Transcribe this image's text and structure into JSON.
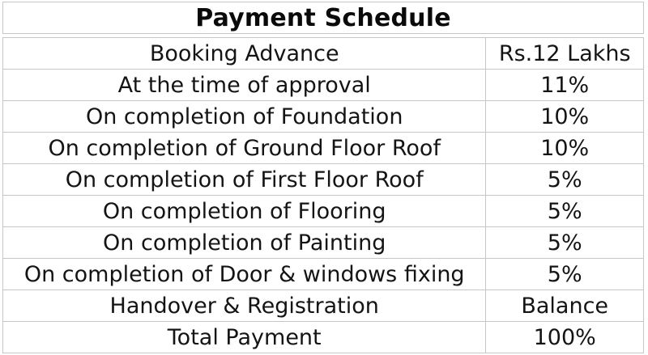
{
  "title": "Payment Schedule",
  "table": {
    "rows": [
      {
        "label": "Booking Advance",
        "value": "Rs.12 Lakhs"
      },
      {
        "label": "At the time of approval",
        "value": "11%"
      },
      {
        "label": "On completion of Foundation",
        "value": "10%"
      },
      {
        "label": "On completion of Ground Floor Roof",
        "value": "10%"
      },
      {
        "label": "On completion of First Floor Roof",
        "value": "5%"
      },
      {
        "label": "On completion of Flooring",
        "value": "5%"
      },
      {
        "label": "On completion of Painting",
        "value": "5%"
      },
      {
        "label": "On completion of Door & windows fixing",
        "value": "5%"
      },
      {
        "label": "Handover & Registration",
        "value": "Balance"
      },
      {
        "label": "Total Payment",
        "value": "100%"
      }
    ]
  },
  "colors": {
    "background": "#ffffff",
    "border": "#c6c6c6",
    "text": "#141414"
  }
}
